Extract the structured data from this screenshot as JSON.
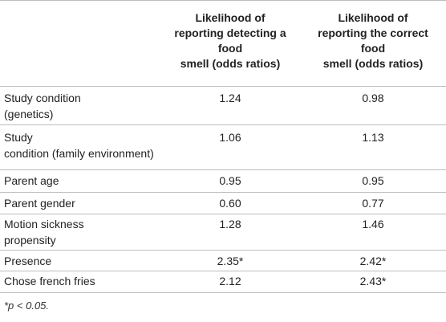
{
  "table": {
    "column_headers": [
      "Likelihood of\nreporting detecting a\nfood\nsmell (odds ratios)",
      "Likelihood of\nreporting the correct\nfood\nsmell (odds ratios)"
    ],
    "rows": [
      {
        "label": "Study condition\n(genetics)",
        "v1": "1.24",
        "v2": "0.98"
      },
      {
        "label": "Study\ncondition (family environment)",
        "v1": "1.06",
        "v2": "1.13"
      },
      {
        "label": "Parent age",
        "v1": "0.95",
        "v2": "0.95"
      },
      {
        "label": "Parent gender",
        "v1": "0.60",
        "v2": "0.77"
      },
      {
        "label": "Motion sickness\npropensity",
        "v1": "1.28",
        "v2": "1.46"
      },
      {
        "label": "Presence",
        "v1": "2.35*",
        "v2": "2.42*"
      },
      {
        "label": "Chose french fries",
        "v1": "2.12",
        "v2": "2.43*"
      }
    ]
  },
  "footnote": "*p < 0.05."
}
